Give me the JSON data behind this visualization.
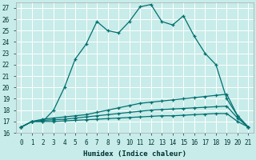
{
  "xlabel": "Humidex (Indice chaleur)",
  "background_color": "#c8ece9",
  "grid_color": "#ffffff",
  "line_color": "#007070",
  "xlim": [
    -0.5,
    21.5
  ],
  "ylim": [
    16,
    27.5
  ],
  "xticks": [
    0,
    1,
    2,
    3,
    4,
    5,
    6,
    7,
    8,
    9,
    10,
    11,
    12,
    13,
    14,
    15,
    16,
    17,
    18,
    19,
    20,
    21
  ],
  "yticks": [
    16,
    17,
    18,
    19,
    20,
    21,
    22,
    23,
    24,
    25,
    26,
    27
  ],
  "series": [
    {
      "x": [
        0,
        1,
        2,
        3,
        4,
        5,
        6,
        7,
        8,
        9,
        10,
        11,
        12,
        13,
        14,
        15,
        16,
        17,
        18,
        19,
        20,
        21
      ],
      "y": [
        16.5,
        17.0,
        17.0,
        18.0,
        20.0,
        22.5,
        23.8,
        25.8,
        25.0,
        24.8,
        25.8,
        27.1,
        27.3,
        25.8,
        25.5,
        26.3,
        24.5,
        23.0,
        22.0,
        19.0,
        17.5,
        16.5
      ]
    },
    {
      "x": [
        0,
        1,
        2,
        3,
        4,
        5,
        6,
        7,
        8,
        9,
        10,
        11,
        12,
        13,
        14,
        15,
        16,
        17,
        18,
        19,
        20,
        21
      ],
      "y": [
        16.5,
        17.0,
        17.2,
        17.3,
        17.4,
        17.5,
        17.6,
        17.8,
        18.0,
        18.2,
        18.4,
        18.6,
        18.7,
        18.8,
        18.9,
        19.0,
        19.1,
        19.2,
        19.3,
        19.4,
        17.5,
        16.5
      ]
    },
    {
      "x": [
        0,
        1,
        2,
        3,
        4,
        5,
        6,
        7,
        8,
        9,
        10,
        11,
        12,
        13,
        14,
        15,
        16,
        17,
        18,
        19,
        20,
        21
      ],
      "y": [
        16.5,
        17.0,
        17.1,
        17.15,
        17.2,
        17.3,
        17.4,
        17.5,
        17.6,
        17.7,
        17.8,
        17.9,
        18.0,
        18.05,
        18.1,
        18.15,
        18.2,
        18.25,
        18.3,
        18.35,
        17.3,
        16.5
      ]
    },
    {
      "x": [
        0,
        1,
        2,
        3,
        4,
        5,
        6,
        7,
        8,
        9,
        10,
        11,
        12,
        13,
        14,
        15,
        16,
        17,
        18,
        19,
        20,
        21
      ],
      "y": [
        16.5,
        17.0,
        17.0,
        17.0,
        17.05,
        17.1,
        17.15,
        17.2,
        17.25,
        17.3,
        17.35,
        17.4,
        17.45,
        17.5,
        17.5,
        17.55,
        17.6,
        17.65,
        17.7,
        17.7,
        17.0,
        16.5
      ]
    }
  ]
}
